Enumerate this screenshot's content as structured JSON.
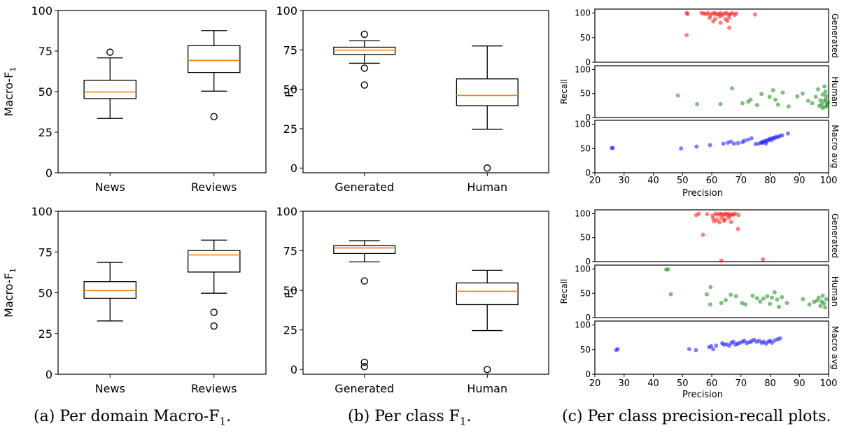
{
  "chart_data": [
    {
      "type": "box",
      "ylabel": "Macro-F1",
      "ylim": [
        0,
        100
      ],
      "yticks": [
        0,
        25,
        50,
        75,
        100
      ],
      "categories": [
        "News",
        "Reviews"
      ],
      "boxes": [
        {
          "category": "News",
          "whisker_low": 33.5,
          "q1": 45.7,
          "median": 49.8,
          "q3": 57.0,
          "whisker_high": 70.8,
          "outliers": [
            74.3
          ]
        },
        {
          "category": "Reviews",
          "whisker_low": 50.3,
          "q1": 61.8,
          "median": 69.2,
          "q3": 78.3,
          "whisker_high": 87.6,
          "outliers": [
            34.6
          ]
        }
      ]
    },
    {
      "type": "box",
      "ylabel": "F1",
      "ylim": [
        -3,
        100
      ],
      "yticks": [
        0,
        25,
        50,
        75,
        100
      ],
      "categories": [
        "Generated",
        "Human"
      ],
      "boxes": [
        {
          "category": "Generated",
          "whisker_low": 66.5,
          "q1": 72.1,
          "median": 74.8,
          "q3": 76.7,
          "whisker_high": 80.8,
          "outliers": [
            84.9,
            63.4,
            52.7
          ]
        },
        {
          "category": "Human",
          "whisker_low": 24.6,
          "q1": 39.6,
          "median": 46.1,
          "q3": 56.6,
          "whisker_high": 77.5,
          "outliers": [
            0.0
          ]
        }
      ]
    },
    {
      "type": "box",
      "ylabel": "Macro-F1",
      "ylim": [
        0,
        100
      ],
      "yticks": [
        0,
        25,
        50,
        75,
        100
      ],
      "categories": [
        "News",
        "Reviews"
      ],
      "boxes": [
        {
          "category": "News",
          "whisker_low": 32.7,
          "q1": 46.6,
          "median": 51.3,
          "q3": 56.8,
          "whisker_high": 68.6,
          "outliers": []
        },
        {
          "category": "Reviews",
          "whisker_low": 49.7,
          "q1": 62.7,
          "median": 73.2,
          "q3": 75.9,
          "whisker_high": 82.3,
          "outliers": [
            38.0,
            29.6
          ]
        }
      ]
    },
    {
      "type": "box",
      "ylabel": "F1",
      "ylim": [
        -3,
        100
      ],
      "yticks": [
        0,
        25,
        50,
        75,
        100
      ],
      "categories": [
        "Generated",
        "Human"
      ],
      "boxes": [
        {
          "category": "Generated",
          "whisker_low": 68.0,
          "q1": 73.3,
          "median": 76.8,
          "q3": 78.3,
          "whisker_high": 81.4,
          "outliers": [
            56.0,
            4.6,
            1.8
          ]
        },
        {
          "category": "Human",
          "whisker_low": 24.6,
          "q1": 41.0,
          "median": 49.4,
          "q3": 54.7,
          "whisker_high": 62.7,
          "outliers": [
            0.0
          ]
        }
      ]
    },
    {
      "type": "scatter",
      "xlabel": "Precision",
      "ylabel": "Recall",
      "xlim": [
        20,
        100
      ],
      "xticks": [
        20,
        30,
        40,
        50,
        60,
        70,
        80,
        90,
        100
      ],
      "ylim": [
        0,
        108
      ],
      "yticks": [
        0,
        50,
        100
      ],
      "series": [
        {
          "name": "Generated",
          "color": "#ff0000",
          "points": [
            [
              51.4,
              100
            ],
            [
              51.7,
              98
            ],
            [
              56.5,
              100
            ],
            [
              57.2,
              99
            ],
            [
              58.0,
              98
            ],
            [
              58.8,
              100
            ],
            [
              59.5,
              96
            ],
            [
              60.3,
              99
            ],
            [
              61.0,
              100
            ],
            [
              61.6,
              97
            ],
            [
              62.3,
              98
            ],
            [
              63.0,
              100
            ],
            [
              63.6,
              96
            ],
            [
              64.3,
              99
            ],
            [
              65.0,
              100
            ],
            [
              65.7,
              97
            ],
            [
              66.4,
              98
            ],
            [
              67.1,
              100
            ],
            [
              67.8,
              96
            ],
            [
              68.4,
              99
            ],
            [
              59.3,
              90
            ],
            [
              61.2,
              88
            ],
            [
              62.8,
              93
            ],
            [
              64.7,
              88
            ],
            [
              66.0,
              91
            ],
            [
              60.5,
              83
            ],
            [
              63.0,
              80
            ],
            [
              65.3,
              84
            ],
            [
              74.8,
              97
            ],
            [
              51.4,
              55
            ],
            [
              66.0,
              70
            ]
          ]
        },
        {
          "name": "Human",
          "color": "#008000",
          "points": [
            [
              48.4,
              46
            ],
            [
              55.0,
              28
            ],
            [
              63.0,
              28
            ],
            [
              67.0,
              61
            ],
            [
              70.5,
              30
            ],
            [
              72.5,
              33
            ],
            [
              73.3,
              37
            ],
            [
              75.5,
              26
            ],
            [
              77.0,
              49
            ],
            [
              79.8,
              43
            ],
            [
              81.0,
              57
            ],
            [
              81.8,
              37
            ],
            [
              82.7,
              27
            ],
            [
              84.3,
              52
            ],
            [
              86.3,
              23
            ],
            [
              89.3,
              44
            ],
            [
              91.1,
              50
            ],
            [
              93.0,
              35
            ],
            [
              94.4,
              30
            ],
            [
              95.6,
              43
            ],
            [
              96.4,
              59
            ],
            [
              96.8,
              24
            ],
            [
              97.2,
              36
            ],
            [
              97.6,
              28
            ],
            [
              98.0,
              48
            ],
            [
              98.4,
              34
            ],
            [
              98.6,
              65
            ],
            [
              98.8,
              22
            ],
            [
              99.0,
              38
            ],
            [
              99.2,
              45
            ],
            [
              99.4,
              28
            ],
            [
              99.6,
              24
            ],
            [
              99.8,
              32
            ],
            [
              97.9,
              20
            ],
            [
              98.9,
              54
            ]
          ]
        },
        {
          "name": "Macro avg",
          "color": "#0000ff",
          "points": [
            [
              25.7,
              51
            ],
            [
              26.2,
              51
            ],
            [
              49.5,
              50
            ],
            [
              54.8,
              54
            ],
            [
              59.4,
              57
            ],
            [
              64.0,
              60
            ],
            [
              65.5,
              62
            ],
            [
              66.5,
              64
            ],
            [
              67.6,
              60
            ],
            [
              69.0,
              61
            ],
            [
              70.5,
              63
            ],
            [
              71.2,
              66
            ],
            [
              72.4,
              68
            ],
            [
              73.6,
              71
            ],
            [
              75.0,
              59
            ],
            [
              76.0,
              60
            ],
            [
              76.9,
              62
            ],
            [
              77.6,
              64
            ],
            [
              78.3,
              66
            ],
            [
              78.9,
              65
            ],
            [
              79.4,
              68
            ],
            [
              79.9,
              70
            ],
            [
              80.4,
              67
            ],
            [
              80.9,
              72
            ],
            [
              81.4,
              71
            ],
            [
              82.0,
              74
            ],
            [
              82.6,
              73
            ],
            [
              83.3,
              76
            ],
            [
              84.1,
              77
            ],
            [
              86.1,
              81
            ],
            [
              77.3,
              62
            ],
            [
              78.5,
              60
            ]
          ]
        }
      ]
    },
    {
      "type": "scatter",
      "xlabel": "Precision",
      "ylabel": "Recall",
      "xlim": [
        20,
        100
      ],
      "xticks": [
        20,
        30,
        40,
        50,
        60,
        70,
        80,
        90,
        100
      ],
      "ylim": [
        0,
        108
      ],
      "yticks": [
        0,
        50,
        100
      ],
      "series": [
        {
          "name": "Generated",
          "color": "#ff0000",
          "points": [
            [
              54.7,
              97
            ],
            [
              55.6,
              100
            ],
            [
              58.4,
              99
            ],
            [
              60.3,
              96
            ],
            [
              61.3,
              100
            ],
            [
              62.0,
              98
            ],
            [
              62.8,
              100
            ],
            [
              63.4,
              99
            ],
            [
              64.0,
              97
            ],
            [
              64.6,
              100
            ],
            [
              65.1,
              98
            ],
            [
              65.7,
              100
            ],
            [
              66.3,
              96
            ],
            [
              66.8,
              99
            ],
            [
              67.4,
              98
            ],
            [
              68.0,
              100
            ],
            [
              69.2,
              97
            ],
            [
              60.5,
              90
            ],
            [
              61.8,
              87
            ],
            [
              63.3,
              91
            ],
            [
              64.5,
              88
            ],
            [
              65.8,
              92
            ],
            [
              60.8,
              84
            ],
            [
              62.6,
              82
            ],
            [
              64.2,
              85
            ],
            [
              66.6,
              83
            ],
            [
              69.0,
              68
            ],
            [
              57.0,
              56
            ],
            [
              63.3,
              2
            ],
            [
              77.5,
              5
            ]
          ]
        },
        {
          "name": "Human",
          "color": "#008000",
          "points": [
            [
              44.4,
              99
            ],
            [
              45.1,
              99
            ],
            [
              46.0,
              48
            ],
            [
              58.3,
              48
            ],
            [
              59.5,
              27
            ],
            [
              59.6,
              63
            ],
            [
              63.3,
              30
            ],
            [
              64.8,
              36
            ],
            [
              66.5,
              47
            ],
            [
              68.3,
              44
            ],
            [
              70.4,
              30
            ],
            [
              71.5,
              27
            ],
            [
              74.0,
              45
            ],
            [
              75.5,
              40
            ],
            [
              76.6,
              33
            ],
            [
              77.7,
              39
            ],
            [
              79.0,
              44
            ],
            [
              79.9,
              28
            ],
            [
              80.6,
              41
            ],
            [
              81.5,
              52
            ],
            [
              82.4,
              37
            ],
            [
              83.0,
              22
            ],
            [
              84.0,
              42
            ],
            [
              85.7,
              30
            ],
            [
              91.2,
              38
            ],
            [
              93.4,
              27
            ],
            [
              95.0,
              32
            ],
            [
              96.0,
              35
            ],
            [
              96.6,
              41
            ],
            [
              97.2,
              24
            ],
            [
              97.6,
              33
            ],
            [
              98.0,
              45
            ],
            [
              98.4,
              29
            ],
            [
              98.8,
              21
            ],
            [
              99.2,
              38
            ]
          ]
        },
        {
          "name": "Macro avg",
          "color": "#0000ff",
          "points": [
            [
              27.3,
              49
            ],
            [
              27.8,
              51
            ],
            [
              52.3,
              51
            ],
            [
              54.6,
              49
            ],
            [
              59.1,
              55
            ],
            [
              59.8,
              57
            ],
            [
              60.5,
              51
            ],
            [
              61.5,
              58
            ],
            [
              63.6,
              63
            ],
            [
              64.2,
              60
            ],
            [
              65.1,
              61
            ],
            [
              66.0,
              58
            ],
            [
              66.7,
              64
            ],
            [
              67.4,
              66
            ],
            [
              68.1,
              60
            ],
            [
              68.8,
              62
            ],
            [
              69.6,
              64
            ],
            [
              70.5,
              66
            ],
            [
              71.2,
              68
            ],
            [
              72.0,
              63
            ],
            [
              72.9,
              65
            ],
            [
              73.6,
              67
            ],
            [
              74.4,
              70
            ],
            [
              75.3,
              66
            ],
            [
              76.2,
              68
            ],
            [
              77.1,
              64
            ],
            [
              77.8,
              66
            ],
            [
              78.6,
              62
            ],
            [
              79.4,
              66
            ],
            [
              80.0,
              68
            ],
            [
              80.7,
              64
            ],
            [
              81.6,
              69
            ],
            [
              82.6,
              71
            ],
            [
              83.4,
              73
            ]
          ]
        }
      ]
    }
  ],
  "captions": {
    "a_prefix": "(a) Per domain Macro-F",
    "a_sub": "1",
    "a_suffix": ".",
    "b_prefix": "(b) Per class F",
    "b_sub": "1",
    "b_suffix": ".",
    "c": "(c) Per class precision-recall plots."
  }
}
